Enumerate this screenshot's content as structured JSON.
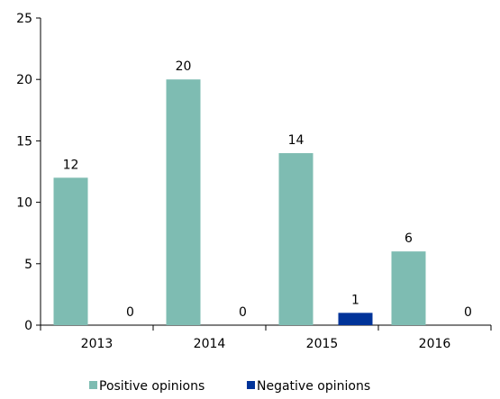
{
  "chart_data": {
    "type": "bar",
    "categories": [
      "2013",
      "2014",
      "2015",
      "2016"
    ],
    "series": [
      {
        "name": "Positive opinions",
        "values": [
          12,
          20,
          14,
          6
        ],
        "color": "#7ebcb2"
      },
      {
        "name": "Negative opinions",
        "values": [
          0,
          0,
          1,
          0
        ],
        "color": "#003399"
      }
    ],
    "ylim": [
      0,
      25
    ],
    "yticks": [
      0,
      5,
      10,
      15,
      20,
      25
    ],
    "grid": false,
    "legend_position": "bottom",
    "title": "",
    "xlabel": "",
    "ylabel": ""
  }
}
